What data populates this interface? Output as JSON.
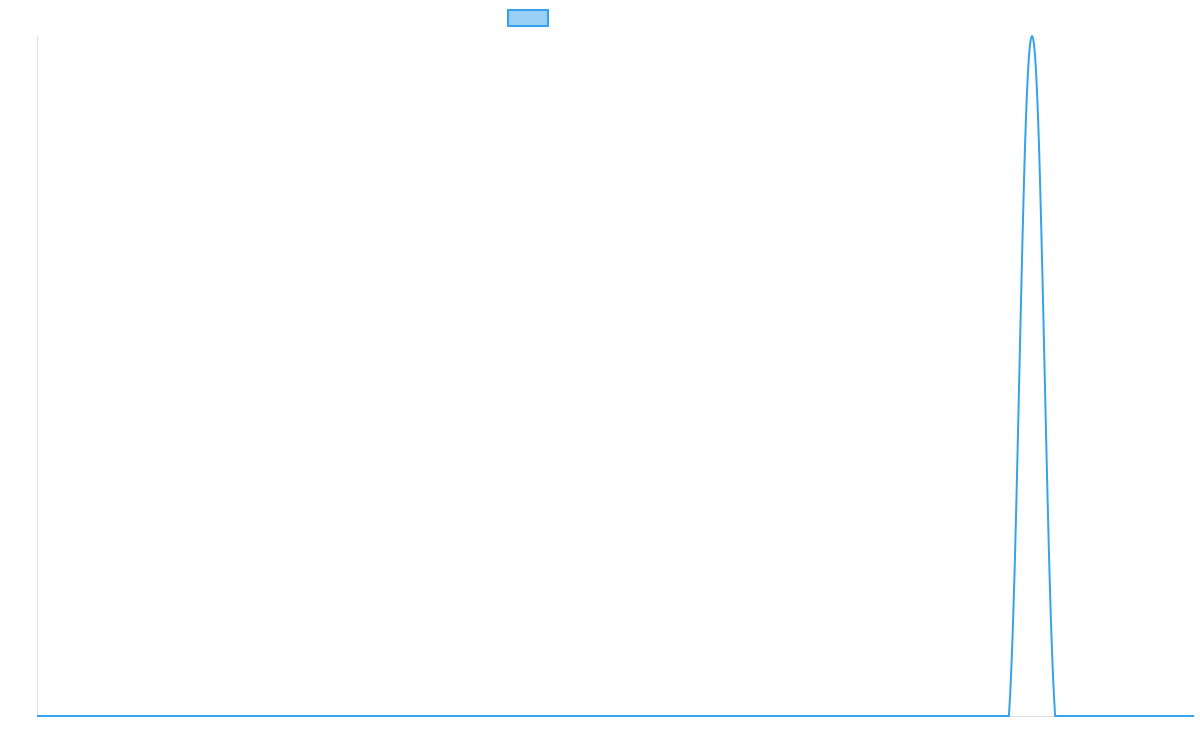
{
  "chart_data": {
    "type": "line",
    "title": "",
    "xlabel": "",
    "ylabel": "",
    "legend": {
      "placement": "top",
      "entries": [
        {
          "name": "",
          "color": "#36a2eb",
          "fill": "#9ad0f5"
        }
      ]
    },
    "grid": false,
    "ylim": [
      0,
      1
    ],
    "x": [
      0,
      1,
      2,
      3,
      4,
      5,
      6,
      7,
      8,
      9,
      10,
      11,
      12,
      13,
      14,
      15,
      16,
      17,
      18,
      19,
      20,
      21,
      22,
      23,
      24,
      25,
      26,
      27,
      28,
      29,
      30,
      31,
      32,
      33,
      34,
      35,
      36,
      37,
      38,
      39,
      40,
      41,
      42,
      43,
      44,
      45,
      46,
      47,
      48,
      49,
      50
    ],
    "series": [
      {
        "color": "#36a2eb",
        "values": [
          0,
          0,
          0,
          0,
          0,
          0,
          0,
          0,
          0,
          0,
          0,
          0,
          0,
          0,
          0,
          0,
          0,
          0,
          0,
          0,
          0,
          0,
          0,
          0,
          0,
          0,
          0,
          0,
          0,
          0,
          0,
          0,
          0,
          0,
          0,
          0,
          0,
          0,
          0,
          0,
          0,
          0,
          0,
          1,
          0,
          0,
          0,
          0,
          0,
          0,
          0
        ]
      }
    ]
  }
}
